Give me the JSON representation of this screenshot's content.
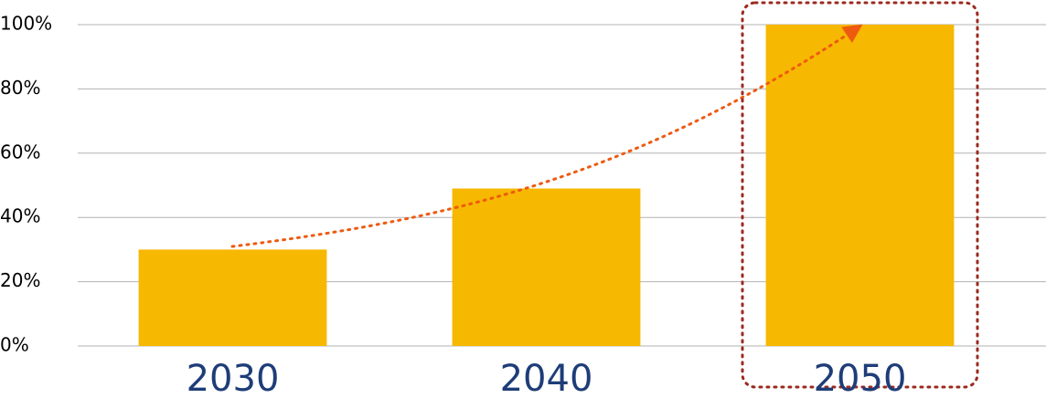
{
  "chart_data": {
    "type": "bar",
    "categories": [
      "2030",
      "2040",
      "2050"
    ],
    "values": [
      30,
      49,
      100
    ],
    "color": "#f6b800",
    "ylim": [
      0,
      100
    ],
    "yticks": [
      {
        "value": 0,
        "label": "0%"
      },
      {
        "value": 20,
        "label": "20%"
      },
      {
        "value": 40,
        "label": "40%"
      },
      {
        "value": 60,
        "label": "60%"
      },
      {
        "value": 80,
        "label": "80%"
      },
      {
        "value": 100,
        "label": "100%"
      }
    ],
    "grid": true
  }
}
